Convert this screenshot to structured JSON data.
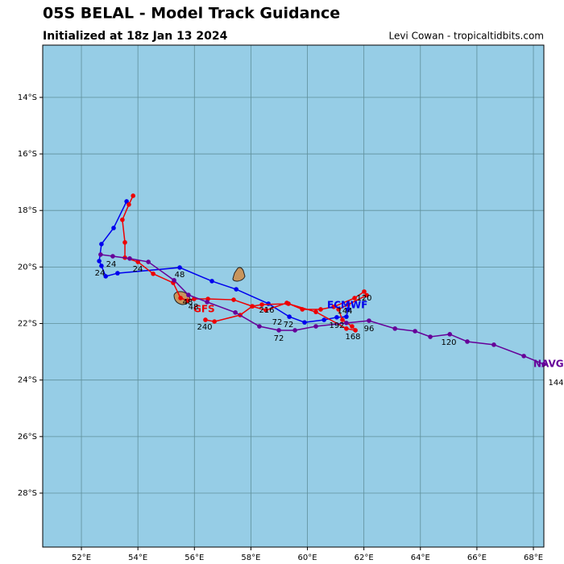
{
  "chart_data": {
    "type": "line",
    "title": "05S BELAL - Model Track Guidance",
    "subtitle": "Initialized at 18z Jan 13 2024",
    "credit": "Levi Cowan - tropicaltidbits.com",
    "xlim": [
      50.63,
      68.37
    ],
    "ylim": [
      -29.91,
      -12.15
    ],
    "xticks": [
      {
        "value": 52,
        "label": "52°E"
      },
      {
        "value": 54,
        "label": "54°E"
      },
      {
        "value": 56,
        "label": "56°E"
      },
      {
        "value": 58,
        "label": "58°E"
      },
      {
        "value": 60,
        "label": "60°E"
      },
      {
        "value": 62,
        "label": "62°E"
      },
      {
        "value": 64,
        "label": "64°E"
      },
      {
        "value": 66,
        "label": "66°E"
      },
      {
        "value": 68,
        "label": "68°E"
      }
    ],
    "yticks": [
      {
        "value": -14,
        "label": "14°S"
      },
      {
        "value": -16,
        "label": "16°S"
      },
      {
        "value": -18,
        "label": "18°S"
      },
      {
        "value": -20,
        "label": "20°S"
      },
      {
        "value": -22,
        "label": "22°S"
      },
      {
        "value": -24,
        "label": "24°S"
      },
      {
        "value": -26,
        "label": "26°S"
      },
      {
        "value": -28,
        "label": "28°S"
      }
    ],
    "grid": true,
    "background": "#96cde6",
    "series": [
      {
        "name": "ECMWF",
        "color": "#0000ee",
        "x": [
          53.6,
          53.14,
          52.71,
          52.63,
          52.71,
          52.86,
          53.28,
          55.48,
          56.62,
          57.48,
          58.62,
          59.36,
          59.9,
          60.59,
          61.04,
          61.38,
          61.44
        ],
        "values": [
          -17.68,
          -18.62,
          -19.19,
          -19.79,
          -19.96,
          -20.33,
          -20.22,
          -20.02,
          -20.5,
          -20.79,
          -21.3,
          -21.76,
          -21.96,
          -21.87,
          -21.78,
          -21.76,
          -21.5
        ]
      },
      {
        "name": "GFS",
        "color": "#ee0000",
        "x": [
          53.83,
          53.68,
          53.45,
          53.54,
          53.54,
          54.0,
          54.54,
          55.25,
          55.51,
          55.76,
          55.99,
          56.48,
          57.39,
          58.05,
          58.53,
          59.27,
          59.82,
          60.47,
          60.93,
          61.67,
          62.01,
          62.1,
          61.44,
          61.1,
          61.24,
          61.58,
          61.7,
          61.38,
          60.3,
          59.33,
          58.39,
          58.05,
          57.62,
          56.71,
          56.39
        ],
        "values": [
          -17.48,
          -17.79,
          -18.33,
          -19.13,
          -19.67,
          -19.82,
          -20.24,
          -20.56,
          -21.1,
          -21.19,
          -21.13,
          -21.13,
          -21.16,
          -21.39,
          -21.53,
          -21.27,
          -21.5,
          -21.5,
          -21.41,
          -21.1,
          -20.87,
          -21.0,
          -21.33,
          -21.5,
          -21.87,
          -22.1,
          -22.24,
          -22.18,
          -21.59,
          -21.3,
          -21.33,
          -21.39,
          -21.7,
          -21.93,
          -21.87
        ]
      },
      {
        "name": "NAVGEM",
        "color": "#660099",
        "x": [
          52.68,
          53.11,
          53.71,
          54.37,
          55.28,
          55.79,
          56.45,
          57.45,
          58.3,
          58.99,
          59.56,
          60.3,
          61.38,
          62.18,
          63.1,
          63.81,
          64.35,
          65.04,
          65.66,
          66.6,
          67.66,
          68.37
        ],
        "values": [
          -19.56,
          -19.62,
          -19.7,
          -19.82,
          -20.47,
          -20.99,
          -21.24,
          -21.61,
          -22.1,
          -22.24,
          -22.24,
          -22.1,
          -21.98,
          -21.9,
          -22.18,
          -22.27,
          -22.47,
          -22.38,
          -22.64,
          -22.75,
          -23.15,
          -23.44
        ]
      }
    ],
    "annotations": [
      "24",
      "24",
      "24",
      "48",
      "48",
      "48",
      "72",
      "72",
      "72",
      "96",
      "120",
      "120",
      "144",
      "144",
      "168",
      "192",
      "216",
      "240"
    ]
  }
}
